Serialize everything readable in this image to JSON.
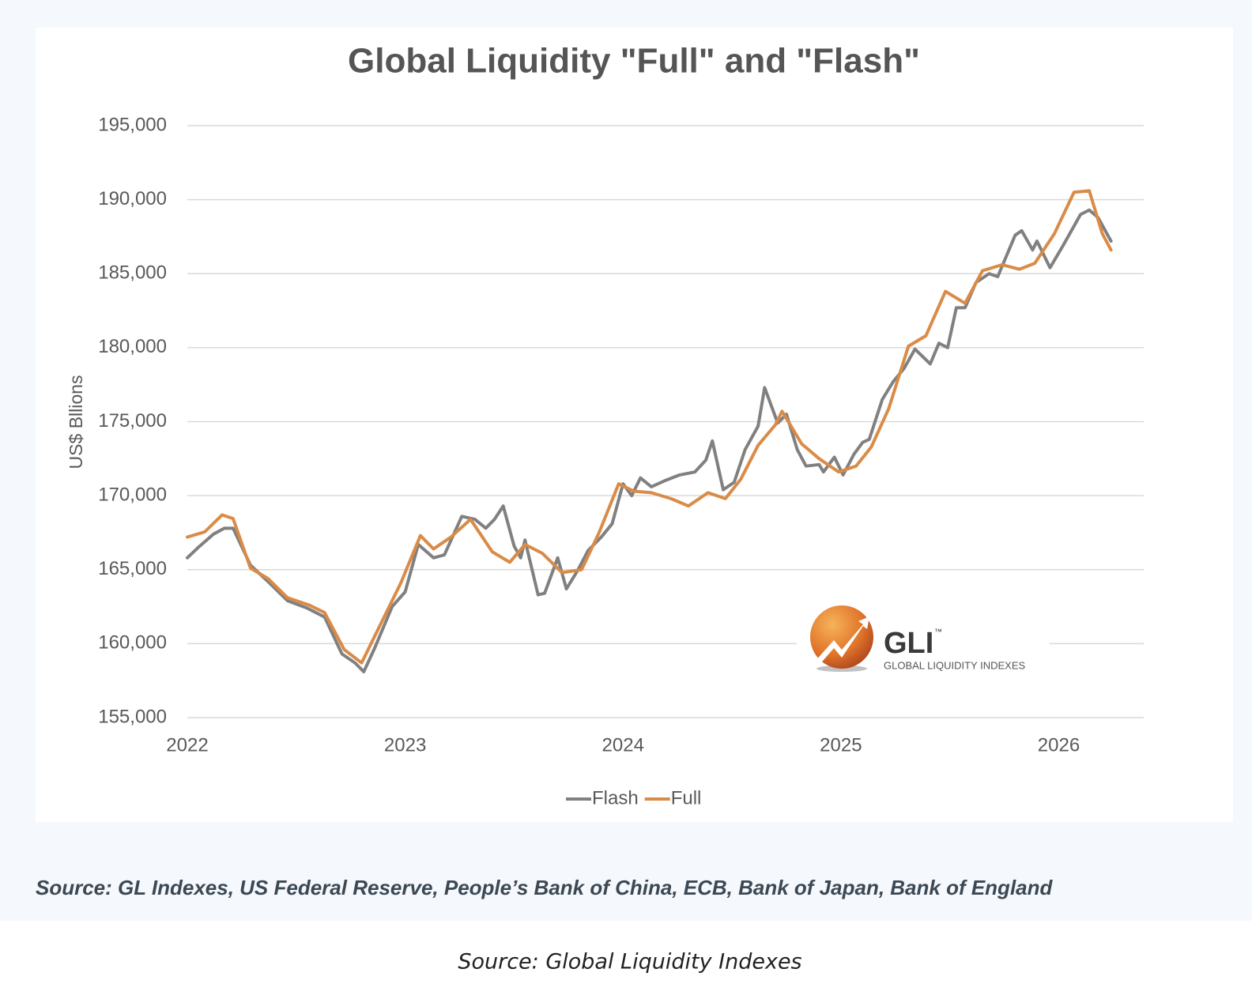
{
  "chart_data": {
    "type": "line",
    "title": "Global Liquidity \"Full\" and \"Flash\"",
    "y_label": "US$ Bllions",
    "xlim": [
      2022,
      2026.39
    ],
    "xticks": [
      2022,
      2023,
      2024,
      2025,
      2026
    ],
    "ylim": [
      155000,
      195000
    ],
    "yticks": [
      {
        "value": 155000,
        "label": "155,000"
      },
      {
        "value": 160000,
        "label": "160,000"
      },
      {
        "value": 165000,
        "label": "165,000"
      },
      {
        "value": 170000,
        "label": "170,000"
      },
      {
        "value": 175000,
        "label": "175,000"
      },
      {
        "value": 180000,
        "label": "180,000"
      },
      {
        "value": 185000,
        "label": "185,000"
      },
      {
        "value": 190000,
        "label": "190,000"
      },
      {
        "value": 195000,
        "label": "195,000"
      }
    ],
    "grid": true,
    "legend": "bottom",
    "series": [
      {
        "name": "Flash",
        "color": "#808080",
        "x": [
          2022.0,
          2022.05,
          2022.12,
          2022.17,
          2022.21,
          2022.29,
          2022.37,
          2022.46,
          2022.55,
          2022.63,
          2022.71,
          2022.77,
          2022.81,
          2022.86,
          2022.94,
          2023.0,
          2023.06,
          2023.13,
          2023.18,
          2023.26,
          2023.32,
          2023.37,
          2023.41,
          2023.45,
          2023.5,
          2023.53,
          2023.55,
          2023.61,
          2023.64,
          2023.7,
          2023.74,
          2023.79,
          2023.84,
          2023.9,
          2023.95,
          2024.0,
          2024.04,
          2024.08,
          2024.13,
          2024.19,
          2024.26,
          2024.33,
          2024.38,
          2024.41,
          2024.46,
          2024.51,
          2024.56,
          2024.62,
          2024.65,
          2024.71,
          2024.75,
          2024.8,
          2024.84,
          2024.9,
          2024.92,
          2024.97,
          2025.01,
          2025.06,
          2025.1,
          2025.13,
          2025.19,
          2025.24,
          2025.29,
          2025.34,
          2025.41,
          2025.45,
          2025.49,
          2025.53,
          2025.57,
          2025.62,
          2025.68,
          2025.72,
          2025.8,
          2025.83,
          2025.88,
          2025.9,
          2025.96,
          2026.02,
          2026.1,
          2026.14,
          2026.18,
          2026.24
        ],
        "values": [
          165800,
          166500,
          167400,
          167800,
          167800,
          165300,
          164200,
          162900,
          162400,
          161800,
          159300,
          158700,
          158100,
          159700,
          162500,
          163500,
          166700,
          165800,
          166000,
          168600,
          168400,
          167800,
          168400,
          169300,
          166600,
          165800,
          167000,
          163300,
          163400,
          165800,
          163700,
          164900,
          166300,
          167200,
          168100,
          170800,
          170000,
          171200,
          170600,
          171000,
          171400,
          171600,
          172400,
          173700,
          170400,
          170900,
          173100,
          174700,
          177300,
          174900,
          175500,
          173100,
          172000,
          172100,
          171600,
          172600,
          171400,
          172800,
          173600,
          173800,
          176500,
          177700,
          178600,
          179900,
          178900,
          180300,
          180000,
          182700,
          182700,
          184400,
          185000,
          184800,
          187600,
          187900,
          186600,
          187200,
          185400,
          186900,
          189000,
          189300,
          188800,
          187200
        ]
      },
      {
        "name": "Full",
        "color": "#d98b47",
        "x": [
          2022.0,
          2022.08,
          2022.16,
          2022.21,
          2022.29,
          2022.37,
          2022.46,
          2022.56,
          2022.63,
          2022.72,
          2022.8,
          2022.9,
          2022.98,
          2023.07,
          2023.13,
          2023.21,
          2023.3,
          2023.4,
          2023.48,
          2023.55,
          2023.63,
          2023.72,
          2023.81,
          2023.89,
          2023.98,
          2024.05,
          2024.13,
          2024.22,
          2024.3,
          2024.39,
          2024.47,
          2024.54,
          2024.62,
          2024.7,
          2024.73,
          2024.82,
          2024.9,
          2024.99,
          2025.07,
          2025.14,
          2025.22,
          2025.31,
          2025.39,
          2025.48,
          2025.57,
          2025.65,
          2025.74,
          2025.82,
          2025.89,
          2025.98,
          2026.07,
          2026.14,
          2026.2,
          2026.24
        ],
        "values": [
          167200,
          167550,
          168700,
          168450,
          165100,
          164400,
          163100,
          162600,
          162100,
          159600,
          158700,
          161700,
          164100,
          167300,
          166400,
          167200,
          168400,
          166200,
          165500,
          166700,
          166100,
          164800,
          165000,
          167500,
          170800,
          170300,
          170200,
          169800,
          169300,
          170200,
          169800,
          171100,
          173400,
          174800,
          175700,
          173500,
          172500,
          171600,
          172000,
          173300,
          175900,
          180100,
          180800,
          183800,
          183000,
          185200,
          185600,
          185300,
          185700,
          187700,
          190500,
          190600,
          187700,
          186600
        ]
      }
    ]
  },
  "logo": {
    "name": "GLI",
    "mark": "™",
    "subtitle": "GLOBAL LIQUIDITY INDEXES"
  },
  "source_note": "Source: GL Indexes, US Federal Reserve, People’s Bank of China, ECB, Bank of Japan, Bank of England",
  "caption": "Source: Global Liquidity Indexes"
}
